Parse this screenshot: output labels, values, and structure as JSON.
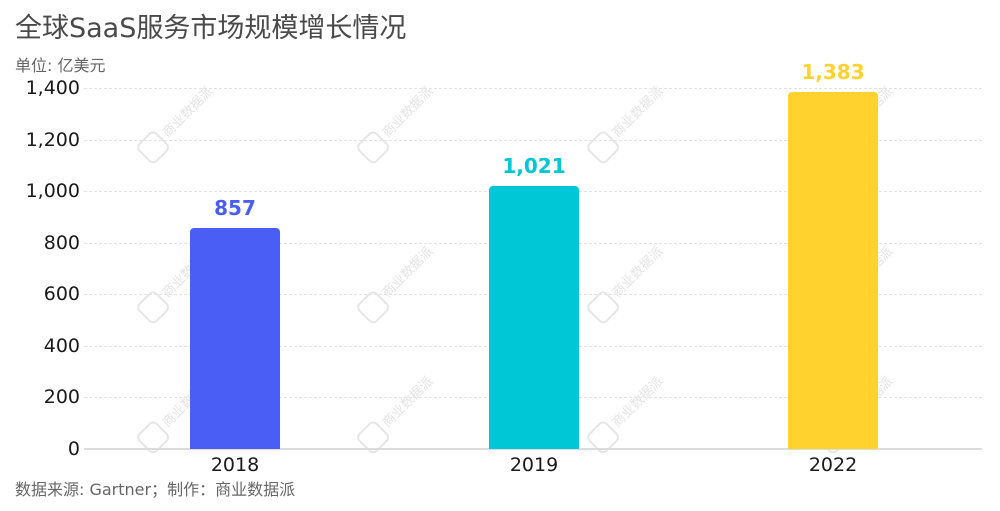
{
  "header": {
    "title": "全球SaaS服务市场规模增长情况",
    "unit": "单位: 亿美元"
  },
  "footer": {
    "source": "数据来源: Gartner；制作：商业数据派"
  },
  "watermark": {
    "text": "商业数据派",
    "subtext": "Business & Data"
  },
  "colors": {
    "bar_2018": "#4a5ef5",
    "bar_2019": "#00c7d6",
    "bar_2022": "#ffd22e"
  },
  "chart_data": {
    "type": "bar",
    "title": "全球SaaS服务市场规模增长情况",
    "subtitle": "单位: 亿美元",
    "xlabel": "",
    "ylabel": "亿美元",
    "categories": [
      "2018",
      "2019",
      "2022"
    ],
    "values": [
      857,
      1021,
      1383
    ],
    "value_labels": [
      "857",
      "1,021",
      "1,383"
    ],
    "colors": [
      "#4a5ef5",
      "#00c7d6",
      "#ffd22e"
    ],
    "ylim": [
      0,
      1400
    ],
    "yticks": [
      0,
      200,
      400,
      600,
      800,
      1000,
      1200,
      1400
    ],
    "ytick_labels": [
      "0",
      "200",
      "400",
      "600",
      "800",
      "1,000",
      "1,200",
      "1,400"
    ],
    "grid": true,
    "legend": "none",
    "source": "数据来源: Gartner；制作：商业数据派"
  }
}
